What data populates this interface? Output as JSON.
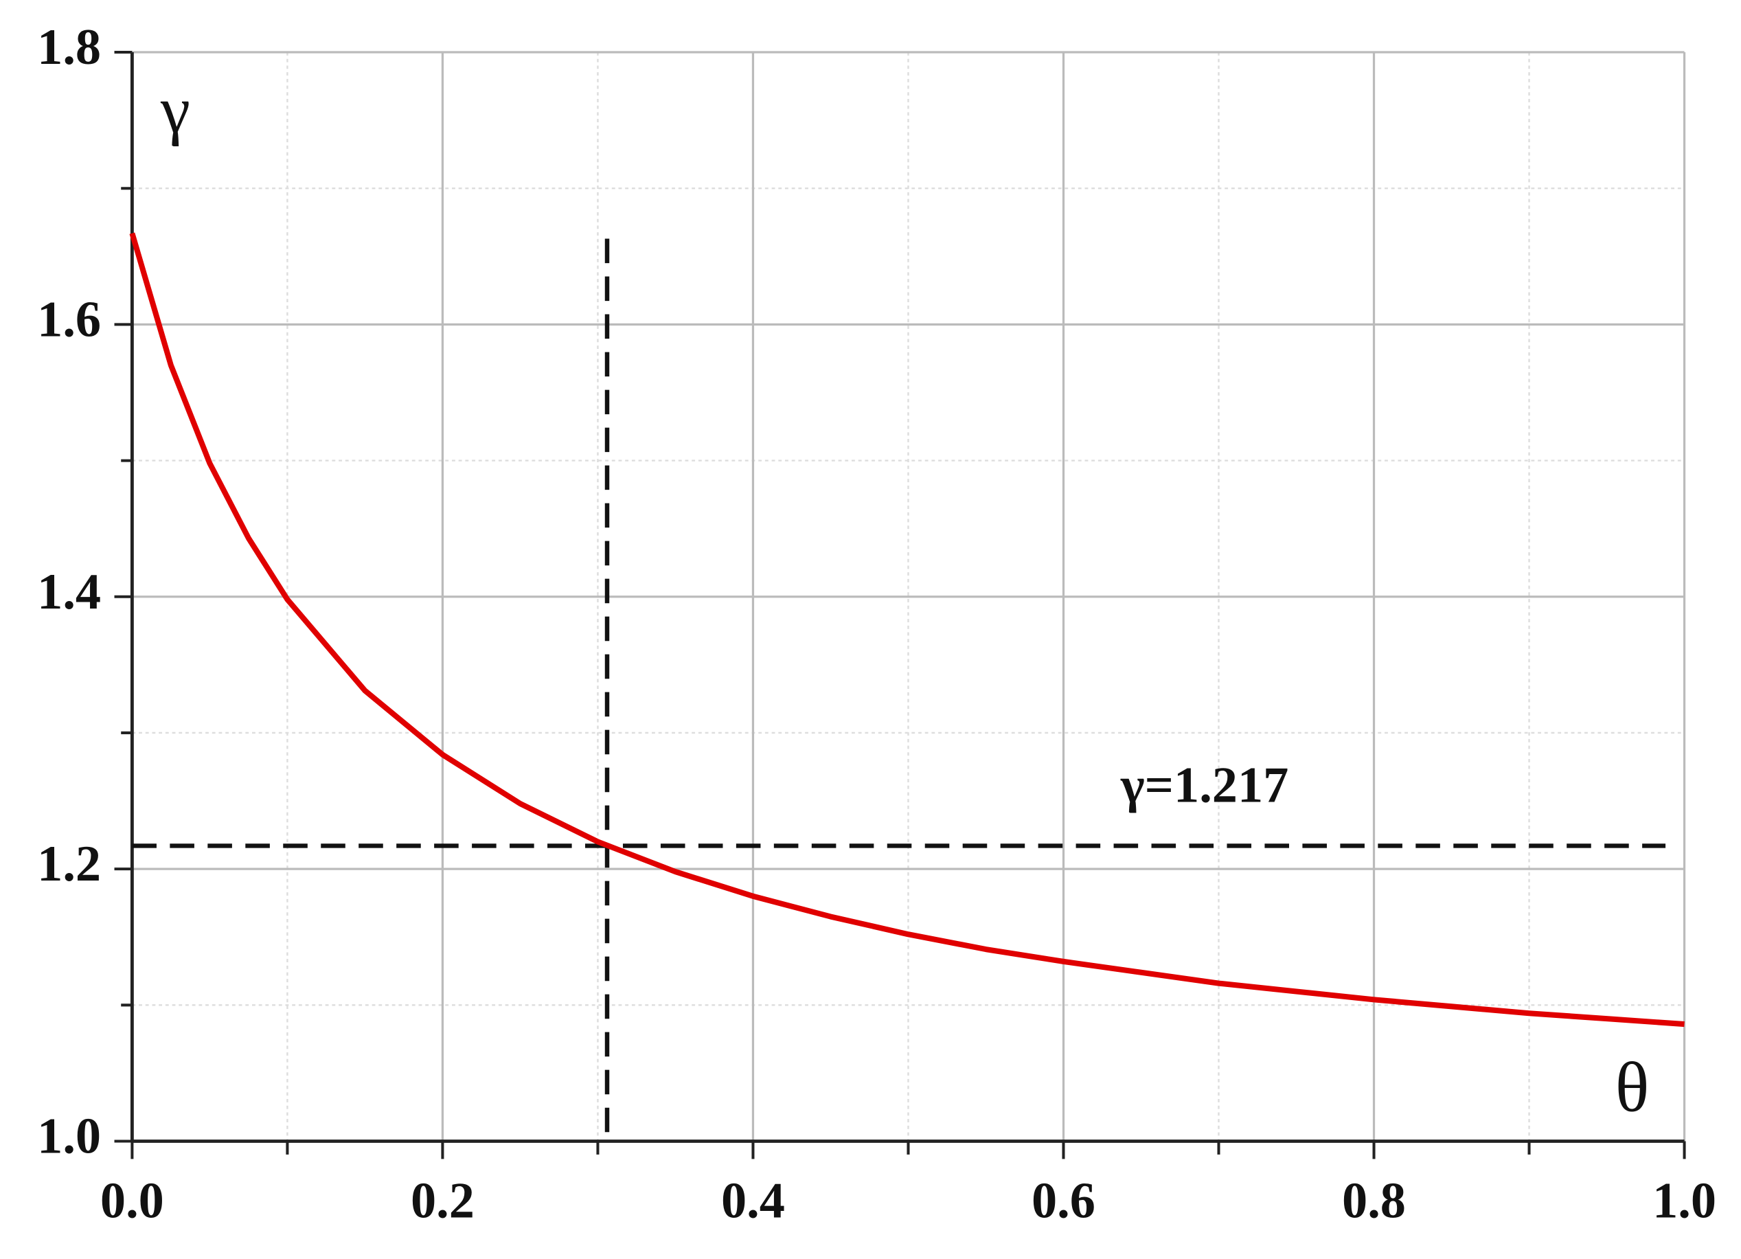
{
  "chart_data": {
    "type": "line",
    "x_label": "θ",
    "y_label": "γ",
    "x": [
      0,
      0.025,
      0.05,
      0.075,
      0.1,
      0.15,
      0.2,
      0.25,
      0.3,
      0.35,
      0.4,
      0.45,
      0.5,
      0.55,
      0.6,
      0.65,
      0.7,
      0.75,
      0.8,
      0.85,
      0.9,
      0.95,
      1.0
    ],
    "series": [
      {
        "color": "#e00000",
        "values": [
          1.667,
          1.57,
          1.498,
          1.443,
          1.398,
          1.331,
          1.284,
          1.248,
          1.22,
          1.198,
          1.18,
          1.165,
          1.152,
          1.141,
          1.132,
          1.124,
          1.116,
          1.11,
          1.104,
          1.099,
          1.094,
          1.09,
          1.086
        ]
      }
    ],
    "xlim": [
      0,
      1.0
    ],
    "ylim": [
      1.0,
      1.8
    ],
    "xticks": [
      {
        "value": 0,
        "label": "0.0"
      },
      0.2,
      0.4,
      0.6,
      0.8,
      {
        "value": 1.0,
        "label": "1.0"
      }
    ],
    "yticks": [
      {
        "value": 1.0,
        "label": "1.0"
      },
      1.2,
      1.4,
      1.6,
      1.8
    ],
    "xminorticks": [
      0.1,
      0.3,
      0.5,
      0.7,
      0.9
    ],
    "yminorticks": [
      1.1,
      1.3,
      1.5,
      1.7
    ],
    "grid": true,
    "hline": {
      "y": 1.217,
      "label": "γ=1.217"
    },
    "vline": {
      "x": 0.306,
      "ymax": 1.663
    }
  }
}
